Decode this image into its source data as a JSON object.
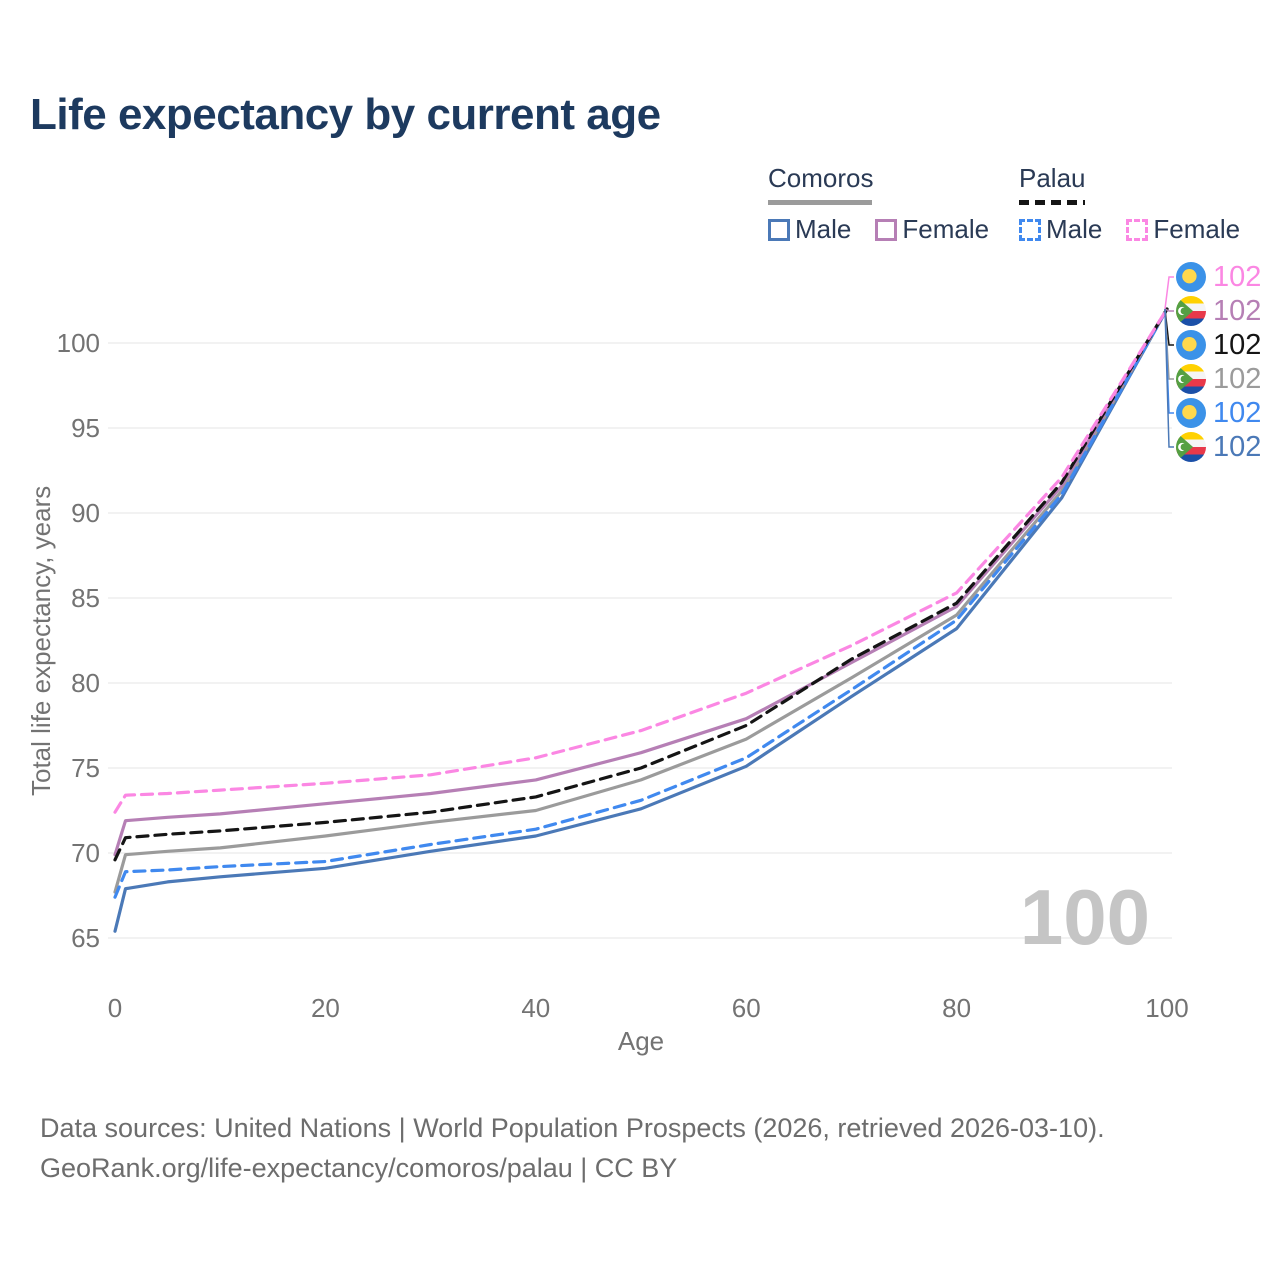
{
  "title": "Life expectancy by current age",
  "legend": {
    "groups": [
      {
        "label": "Comoros",
        "line_style": "solid",
        "underline_color": "#9b9b9b",
        "items": [
          {
            "label": "Male",
            "color": "#4b79b7"
          },
          {
            "label": "Female",
            "color": "#b67fb5"
          }
        ]
      },
      {
        "label": "Palau",
        "line_style": "dashed",
        "underline_color": "#151515",
        "items": [
          {
            "label": "Male",
            "color": "#4089ef"
          },
          {
            "label": "Female",
            "color": "#fb87e3"
          }
        ]
      }
    ]
  },
  "chart_data": {
    "type": "line",
    "title": "Life expectancy by current age",
    "xlabel": "Age",
    "ylabel": "Total life expectancy, years",
    "x": [
      0,
      1,
      5,
      10,
      20,
      30,
      40,
      50,
      60,
      70,
      80,
      90,
      100
    ],
    "series": [
      {
        "name": "Comoros Male",
        "color": "#4b79b7",
        "dashed": false,
        "values": [
          65.4,
          67.9,
          68.3,
          68.6,
          69.1,
          70.1,
          71.0,
          72.6,
          75.1,
          79.2,
          83.2,
          90.9,
          102
        ]
      },
      {
        "name": "Comoros Total",
        "color": "#9b9b9b",
        "dashed": false,
        "values": [
          67.7,
          69.9,
          70.1,
          70.3,
          71.0,
          71.8,
          72.5,
          74.3,
          76.7,
          80.3,
          84.0,
          91.3,
          102
        ]
      },
      {
        "name": "Comoros Female",
        "color": "#b67fb5",
        "dashed": false,
        "values": [
          69.9,
          71.9,
          72.1,
          72.3,
          72.9,
          73.5,
          74.3,
          75.9,
          77.9,
          81.2,
          84.5,
          91.6,
          102
        ]
      },
      {
        "name": "Palau Male",
        "color": "#4089ef",
        "dashed": true,
        "values": [
          67.4,
          68.9,
          69.0,
          69.2,
          69.5,
          70.5,
          71.4,
          73.1,
          75.6,
          79.6,
          83.7,
          91.1,
          102
        ]
      },
      {
        "name": "Palau Total",
        "color": "#151515",
        "dashed": true,
        "values": [
          69.6,
          70.9,
          71.1,
          71.3,
          71.8,
          72.4,
          73.3,
          75.0,
          77.5,
          81.4,
          84.7,
          91.8,
          102
        ]
      },
      {
        "name": "Palau Female",
        "color": "#fb87e3",
        "dashed": true,
        "values": [
          72.4,
          73.4,
          73.5,
          73.7,
          74.1,
          74.6,
          75.6,
          77.2,
          79.4,
          82.2,
          85.3,
          92.1,
          102
        ]
      }
    ],
    "xticks": [
      0,
      20,
      40,
      60,
      80,
      100
    ],
    "yticks": [
      65,
      70,
      75,
      80,
      85,
      90,
      95,
      100
    ],
    "xlim": [
      0,
      100
    ],
    "ylim": [
      65,
      102
    ],
    "grid": "horizontal-only",
    "legend_position": "top-right"
  },
  "annotations": [
    {
      "flag": "palau",
      "value": "102",
      "color": "#fb87e3"
    },
    {
      "flag": "comoros",
      "value": "102",
      "color": "#b67fb5"
    },
    {
      "flag": "palau",
      "value": "102",
      "color": "#151515"
    },
    {
      "flag": "comoros",
      "value": "102",
      "color": "#9b9b9b"
    },
    {
      "flag": "palau",
      "value": "102",
      "color": "#4089ef"
    },
    {
      "flag": "comoros",
      "value": "102",
      "color": "#4b79b7"
    }
  ],
  "watermark": "100",
  "footer": {
    "line1": "Data sources: United Nations | World Population Prospects (2026, retrieved 2026-03-10).",
    "line2": "GeoRank.org/life-expectancy/comoros/palau | CC BY"
  }
}
